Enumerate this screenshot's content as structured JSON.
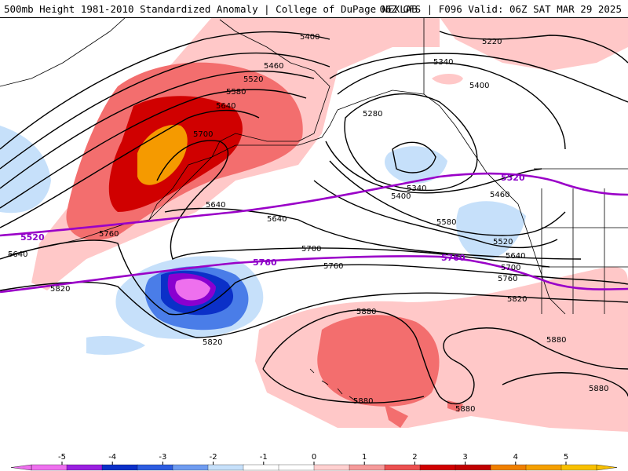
{
  "header": {
    "left_title": "500mb Height 1981-2010 Standardized Anomaly | College of DuPage NEXLAB",
    "right_title": "06Z GFS | F096 Valid: 06Z SAT MAR 29 2025"
  },
  "contour_labels": {
    "c5400_a": "5400",
    "c5460_a": "5460",
    "c5520_a": "5520",
    "c5580_a": "5580",
    "c5640_a": "5640",
    "c5700_a": "5700",
    "c5640_b": "5640",
    "c5640_c": "5640",
    "c5760_a": "5760",
    "c5220": "5220",
    "c5340_a": "5340",
    "c5400_b": "5400",
    "c5280": "5280",
    "c5340_b": "5340",
    "c5400_c": "5400",
    "c5460_b": "5460",
    "c5580_b": "5580",
    "c5520_b": "5520",
    "c5640_d": "5640",
    "c5700_b": "5700",
    "c5760_b": "5760",
    "c5760_c": "5760",
    "c5820_a": "5820",
    "c5820_b": "5820",
    "c5820_c": "5820",
    "c5640_e": "5640",
    "c5880_a": "5880",
    "c5880_b": "5880",
    "c5880_c": "5880",
    "c5880_d": "5880",
    "c5880_e": "5880"
  },
  "reference_lines": {
    "r5520_left": "5520",
    "r5520_right": "5520",
    "r5760_mid": "5760",
    "r5760_right": "5760"
  },
  "colors": {
    "anom_pos1": "#ffc8c8",
    "anom_pos2": "#f36e6e",
    "anom_pos3": "#d00000",
    "anom_pos4": "#f59a00",
    "anom_neg1": "#c6e0fa",
    "anom_neg2": "#4a7de8",
    "anom_neg3": "#0b30c8",
    "anom_neg4": "#8a00d0",
    "anom_neg5": "#ee70ee",
    "ref_line": "#9a00c8",
    "contour": "#000000"
  },
  "colorbar": {
    "ticks": [
      "-5",
      "-4",
      "-3",
      "-2",
      "-1",
      "0",
      "1",
      "2",
      "3",
      "4",
      "5"
    ],
    "colors": [
      "#ee70ee",
      "#9a20e0",
      "#0b30c8",
      "#2d5de0",
      "#6f9cf0",
      "#c6e0fa",
      "#ffffff",
      "#ffffff",
      "#ffd0d0",
      "#f59a9a",
      "#ec5050",
      "#d00000",
      "#c00000",
      "#f08000",
      "#f5a000",
      "#f8c000"
    ]
  }
}
